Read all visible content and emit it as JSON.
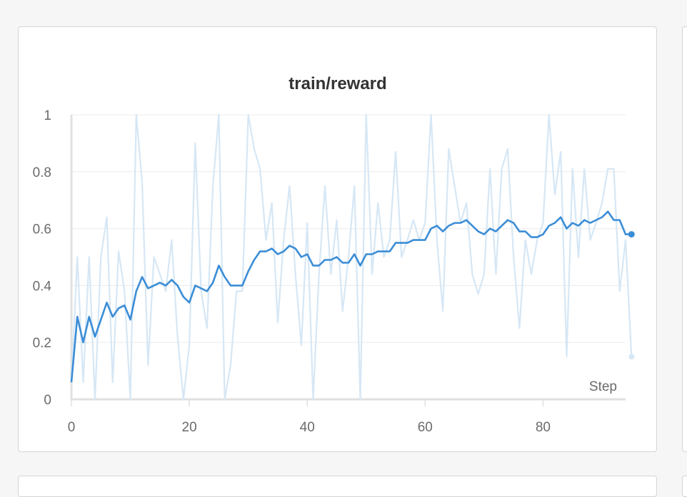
{
  "panel": {
    "title": "train/reward"
  },
  "chart_data": {
    "type": "line",
    "title": "train/reward",
    "xlabel": "Step",
    "ylabel": "",
    "xlim": [
      0,
      94
    ],
    "ylim": [
      0,
      1
    ],
    "x_ticks": [
      0,
      20,
      40,
      60,
      80
    ],
    "y_ticks": [
      0,
      0.2,
      0.4,
      0.6,
      0.8,
      1
    ],
    "grid": true,
    "colors": {
      "smoothed": "#3b8dd6",
      "raw": "#d6e7f5",
      "grid": "#ececec",
      "axis": "#e0e0e0"
    },
    "series": [
      {
        "values": [
          0.06,
          0.5,
          0.06,
          0.5,
          0.0,
          0.5,
          0.64,
          0.06,
          0.52,
          0.38,
          0.0,
          1.0,
          0.76,
          0.12,
          0.5,
          0.44,
          0.38,
          0.56,
          0.22,
          0.0,
          0.19,
          0.9,
          0.38,
          0.25,
          0.75,
          1.0,
          0.0,
          0.12,
          0.38,
          0.38,
          1.0,
          0.88,
          0.81,
          0.56,
          0.69,
          0.27,
          0.56,
          0.75,
          0.44,
          0.19,
          0.62,
          0.0,
          0.44,
          0.75,
          0.44,
          0.63,
          0.31,
          0.5,
          0.75,
          0.0,
          1.0,
          0.44,
          0.69,
          0.5,
          0.56,
          0.87,
          0.5,
          0.56,
          0.63,
          0.56,
          0.62,
          1.0,
          0.56,
          0.31,
          0.88,
          0.75,
          0.62,
          0.69,
          0.44,
          0.37,
          0.44,
          0.81,
          0.44,
          0.81,
          0.88,
          0.5,
          0.25,
          0.56,
          0.44,
          0.56,
          0.62,
          1.0,
          0.72,
          0.87,
          0.15,
          0.81,
          0.5,
          0.81,
          0.56,
          0.62,
          0.69,
          0.81,
          0.81,
          0.38,
          0.56,
          0.15
        ]
      },
      {
        "values": [
          0.06,
          0.29,
          0.2,
          0.29,
          0.22,
          0.28,
          0.34,
          0.29,
          0.32,
          0.33,
          0.28,
          0.38,
          0.43,
          0.39,
          0.4,
          0.41,
          0.4,
          0.42,
          0.4,
          0.36,
          0.34,
          0.4,
          0.39,
          0.38,
          0.41,
          0.47,
          0.43,
          0.4,
          0.4,
          0.4,
          0.45,
          0.49,
          0.52,
          0.52,
          0.53,
          0.51,
          0.52,
          0.54,
          0.53,
          0.5,
          0.51,
          0.47,
          0.47,
          0.49,
          0.49,
          0.5,
          0.48,
          0.48,
          0.51,
          0.47,
          0.51,
          0.51,
          0.52,
          0.52,
          0.52,
          0.55,
          0.55,
          0.55,
          0.56,
          0.56,
          0.56,
          0.6,
          0.61,
          0.59,
          0.61,
          0.62,
          0.62,
          0.63,
          0.61,
          0.59,
          0.58,
          0.6,
          0.59,
          0.61,
          0.63,
          0.62,
          0.59,
          0.59,
          0.57,
          0.57,
          0.58,
          0.61,
          0.62,
          0.64,
          0.6,
          0.62,
          0.61,
          0.63,
          0.62,
          0.63,
          0.64,
          0.66,
          0.63,
          0.63,
          0.58,
          0.58
        ]
      }
    ]
  }
}
